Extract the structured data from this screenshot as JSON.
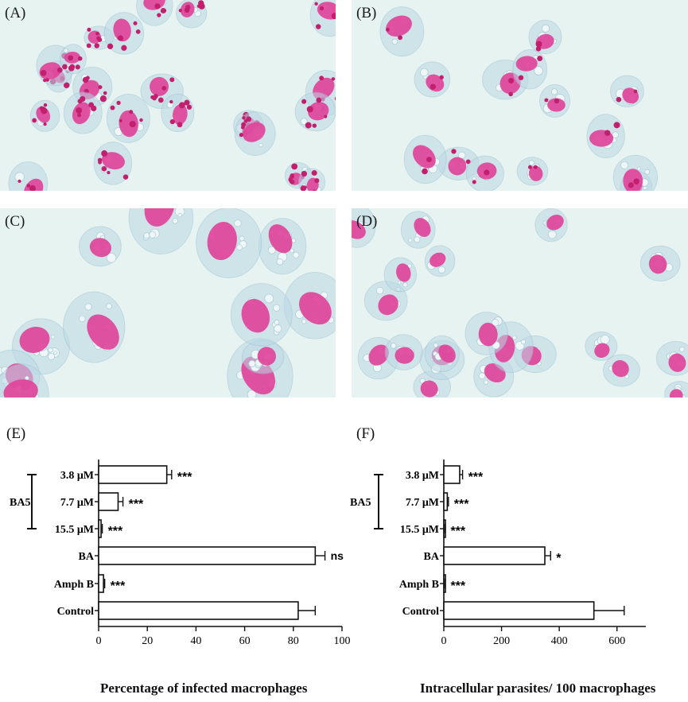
{
  "panels": {
    "A": "(A)",
    "B": "(B)",
    "C": "(C)",
    "D": "(D)",
    "E": "(E)",
    "F": "(F)"
  },
  "colors": {
    "background": "#e6f3f1",
    "nucleus": "#e0449a",
    "cytoplasm": "#bcd9e4",
    "parasite": "#c21f6e",
    "bar_fill": "#ffffff",
    "bar_stroke": "#111111"
  },
  "chart_data": [
    {
      "type": "bar",
      "orientation": "horizontal",
      "panel": "(E)",
      "categories": [
        "3.8 μM",
        "7.7 μM",
        "15.5 μM",
        "BA",
        "Amph B",
        "Control"
      ],
      "group_label": "BA5",
      "group_members": [
        "3.8 μM",
        "7.7 μM",
        "15.5 μM"
      ],
      "values": [
        28,
        8,
        1,
        89,
        2,
        82
      ],
      "errors": [
        2,
        2,
        0.5,
        4,
        0.5,
        7
      ],
      "significance": [
        "***",
        "***",
        "***",
        "ns",
        "***",
        ""
      ],
      "xlabel": "Percentage of infected macrophages",
      "xlim": [
        0,
        100
      ],
      "xticks": [
        0,
        20,
        40,
        60,
        80,
        100
      ]
    },
    {
      "type": "bar",
      "orientation": "horizontal",
      "panel": "(F)",
      "categories": [
        "3.8 μM",
        "7.7 μM",
        "15.5 μM",
        "BA",
        "Amph B",
        "Control"
      ],
      "group_label": "BA5",
      "group_members": [
        "3.8 μM",
        "7.7 μM",
        "15.5 μM"
      ],
      "values": [
        55,
        12,
        3,
        350,
        3,
        520
      ],
      "errors": [
        10,
        4,
        1,
        20,
        1,
        105
      ],
      "significance": [
        "***",
        "***",
        "***",
        "*",
        "***",
        ""
      ],
      "xlabel": "Intracellular parasites/ 100 macrophages",
      "xlim": [
        0,
        700
      ],
      "xticks": [
        0,
        200,
        400,
        600
      ]
    }
  ]
}
